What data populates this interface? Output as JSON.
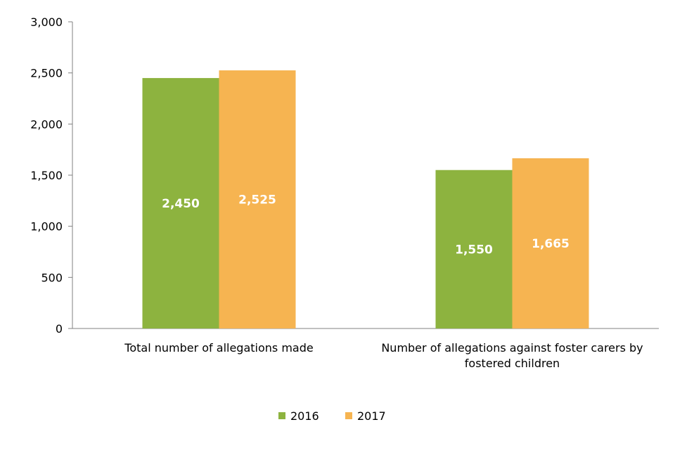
{
  "chart_data": {
    "type": "bar",
    "categories": [
      [
        "Total number of allegations made"
      ],
      [
        "Number of allegations against foster carers by",
        "fostered children"
      ]
    ],
    "series": [
      {
        "name": "2016",
        "values": [
          2450,
          1550
        ],
        "labels": [
          "2,450",
          "1,550"
        ],
        "color": "#8db33f"
      },
      {
        "name": "2017",
        "values": [
          2525,
          1665
        ],
        "labels": [
          "2,525",
          "1,665"
        ],
        "color": "#f6b451"
      }
    ],
    "yticks": [
      0,
      500,
      1000,
      1500,
      2000,
      2500,
      3000
    ],
    "ytick_labels": [
      "0",
      "500",
      "1,000",
      "1,500",
      "2,000",
      "2,500",
      "3,000"
    ],
    "ylim": [
      0,
      3000
    ],
    "grid": false,
    "legend_position": "bottom",
    "title": "",
    "xlabel": "",
    "ylabel": ""
  }
}
